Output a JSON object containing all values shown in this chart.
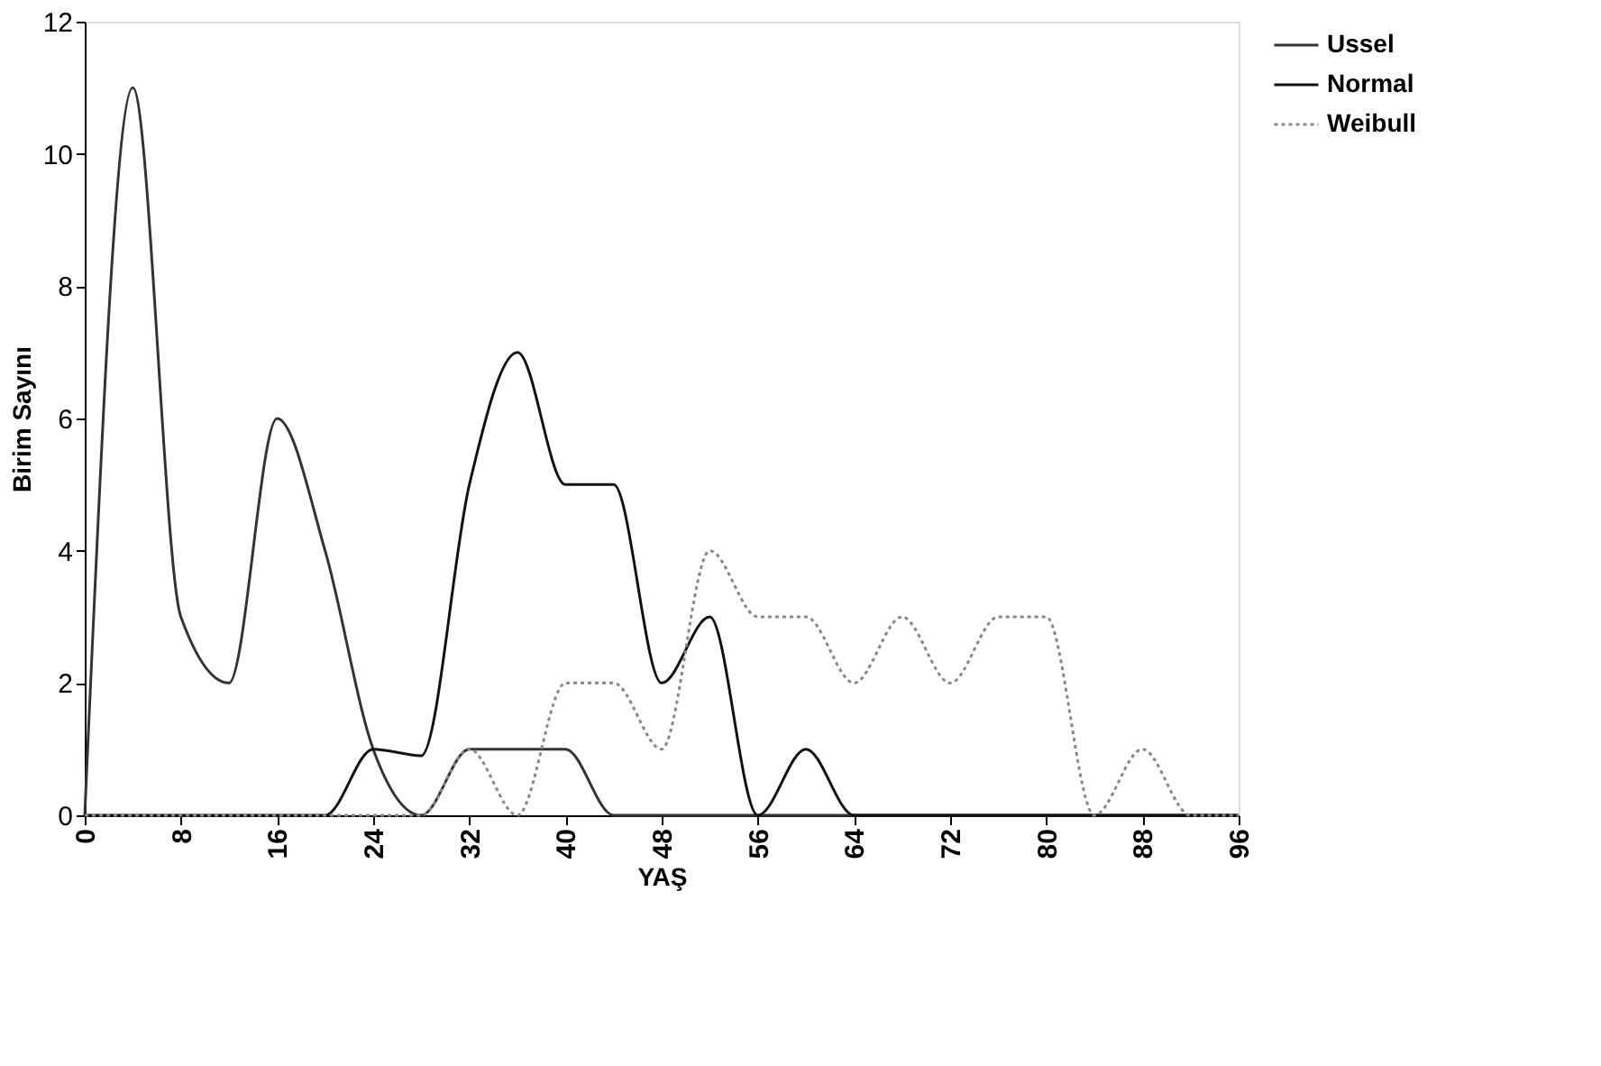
{
  "chart_data": {
    "type": "line",
    "xlabel": "YAŞ",
    "ylabel": "Birim Sayını",
    "xlim": [
      0,
      96
    ],
    "ylim": [
      0,
      12
    ],
    "xticks": [
      0,
      8,
      16,
      24,
      32,
      40,
      48,
      56,
      64,
      72,
      80,
      88,
      96
    ],
    "yticks": [
      0,
      2,
      4,
      6,
      8,
      10,
      12
    ],
    "grid": false,
    "legend": "right",
    "marker": "none",
    "series": [
      {
        "name": "Ussel",
        "color": "#333333",
        "line_style": "solid",
        "x": [
          0,
          4,
          8,
          12,
          16,
          20,
          24,
          28,
          32,
          36,
          40,
          44,
          48,
          52,
          56,
          60,
          64,
          68,
          72,
          76,
          80,
          84,
          88,
          92,
          96
        ],
        "values": [
          0,
          11,
          3,
          2,
          6,
          4,
          1,
          0,
          1,
          1,
          1,
          0,
          0,
          0,
          0,
          0,
          0,
          0,
          0,
          0,
          0,
          0,
          0,
          0,
          0
        ]
      },
      {
        "name": "Normal",
        "color": "#111111",
        "line_style": "solid",
        "x": [
          0,
          4,
          8,
          12,
          16,
          20,
          24,
          28,
          32,
          36,
          40,
          44,
          48,
          52,
          56,
          60,
          64,
          68,
          72,
          76,
          80,
          84,
          88,
          92,
          96
        ],
        "values": [
          0,
          0,
          0,
          0,
          0,
          0,
          1,
          0.9,
          5,
          7,
          5,
          5,
          2,
          3,
          0,
          1,
          0,
          0,
          0,
          0,
          0,
          0,
          0,
          0,
          0
        ]
      },
      {
        "name": "Weibull",
        "color": "#888888",
        "line_style": "dotted",
        "x": [
          0,
          4,
          8,
          12,
          16,
          20,
          24,
          28,
          32,
          36,
          40,
          44,
          48,
          52,
          56,
          60,
          64,
          68,
          72,
          76,
          80,
          84,
          88,
          92,
          96
        ],
        "values": [
          0,
          0,
          0,
          0,
          0,
          0,
          0,
          0,
          1,
          0,
          2,
          2,
          1,
          4,
          3,
          3,
          2,
          3,
          2,
          3,
          3,
          0,
          1,
          0,
          0
        ]
      }
    ]
  }
}
